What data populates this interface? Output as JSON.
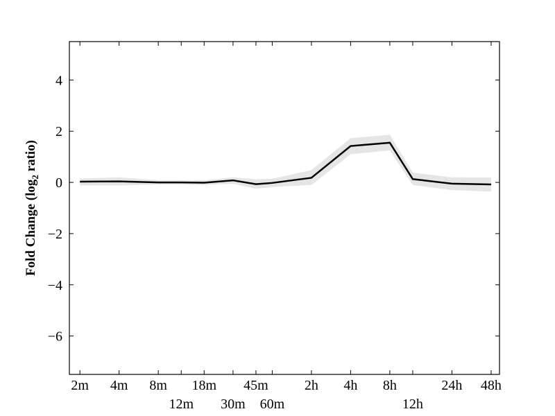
{
  "chart_data": {
    "type": "line",
    "title": "",
    "xlabel": "",
    "ylabel": "Fold Change (log2 ratio)",
    "ylabel_parts": {
      "main": "Fold Change (log",
      "sub": "2",
      "end": " ratio)"
    },
    "x_scale": "log2",
    "x_unit": "minutes",
    "xlim": [
      1.66,
      3340
    ],
    "ylim": [
      -7.5,
      5.5
    ],
    "yticks": [
      -6,
      -4,
      -2,
      0,
      2,
      4
    ],
    "ytick_labels": [
      "−6",
      "−4",
      "−2",
      "0",
      "2",
      "4"
    ],
    "x": [
      2,
      4,
      8,
      12,
      18,
      30,
      45,
      60,
      120,
      240,
      480,
      720,
      1440,
      2880
    ],
    "xtick_labels": [
      "2m",
      "4m",
      "8m",
      "12m",
      "18m",
      "30m",
      "45m",
      "60m",
      "2h",
      "4h",
      "8h",
      "12h",
      "24h",
      "48h"
    ],
    "series": [
      {
        "values": [
          0.03,
          0.04,
          0.0,
          0.0,
          -0.01,
          0.08,
          -0.07,
          -0.02,
          0.18,
          1.42,
          1.55,
          0.13,
          -0.05,
          -0.08
        ],
        "lower": [
          -0.12,
          -0.12,
          -0.08,
          -0.08,
          -0.1,
          -0.05,
          -0.25,
          -0.18,
          -0.1,
          1.1,
          1.25,
          -0.1,
          -0.3,
          -0.36
        ],
        "upper": [
          0.15,
          0.2,
          0.08,
          0.08,
          0.08,
          0.2,
          0.12,
          0.14,
          0.48,
          1.73,
          1.86,
          0.38,
          0.2,
          0.19
        ],
        "color": "#000000",
        "band_color": "#e5e5e5"
      }
    ],
    "grid": false,
    "legend": "none"
  }
}
